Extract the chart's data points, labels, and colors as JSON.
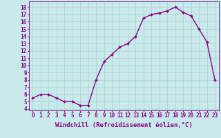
{
  "x": [
    0,
    1,
    2,
    3,
    4,
    5,
    6,
    7,
    8,
    9,
    10,
    11,
    12,
    13,
    14,
    15,
    16,
    17,
    18,
    19,
    20,
    21,
    22,
    23
  ],
  "y": [
    5.5,
    6.0,
    6.0,
    5.5,
    5.0,
    5.0,
    4.5,
    4.5,
    8.0,
    10.5,
    11.5,
    12.5,
    13.0,
    14.0,
    16.5,
    17.0,
    17.2,
    17.5,
    18.0,
    17.3,
    16.8,
    15.0,
    13.2,
    8.0
  ],
  "line_color": "#880088",
  "marker": "D",
  "marker_size": 2,
  "bg_color": "#c8eaea",
  "grid_color": "#aacfcf",
  "xlabel": "Windchill (Refroidissement éolien,°C)",
  "ylabel_ticks": [
    4,
    5,
    6,
    7,
    8,
    9,
    10,
    11,
    12,
    13,
    14,
    15,
    16,
    17,
    18
  ],
  "ylim": [
    3.8,
    18.8
  ],
  "xlim": [
    -0.5,
    23.5
  ],
  "xticks": [
    0,
    1,
    2,
    3,
    4,
    5,
    6,
    7,
    8,
    9,
    10,
    11,
    12,
    13,
    14,
    15,
    16,
    17,
    18,
    19,
    20,
    21,
    22,
    23
  ],
  "line_width": 1.0,
  "font_color": "#880088",
  "tick_fontsize": 5.5,
  "label_fontsize": 6.5
}
